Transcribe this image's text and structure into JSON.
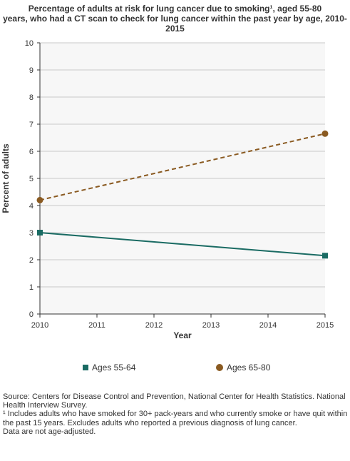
{
  "chart_data": {
    "type": "line",
    "title_lines": [
      "Percentage of adults at risk for lung cancer due to smoking¹, aged 55-80",
      "years, who had a CT scan to check for lung cancer within the past year by age, 2010-",
      "2015"
    ],
    "xlabel": "Year",
    "ylabel": "Percent of adults",
    "x": [
      "2010",
      "2011",
      "2012",
      "2013",
      "2014",
      "2015"
    ],
    "yticks": [
      "0",
      "1",
      "2",
      "3",
      "4",
      "5",
      "6",
      "7",
      "8",
      "9",
      "10"
    ],
    "ylim": [
      0,
      10
    ],
    "xlim": [
      2010,
      2015
    ],
    "grid": "horizontal",
    "legend_position": "bottom",
    "series": [
      {
        "name": "Ages 55-64",
        "color": "#1a6b63",
        "dash": "solid",
        "marker": "square",
        "points": [
          {
            "x": 2010,
            "y": 3.0
          },
          {
            "x": 2015,
            "y": 2.15
          }
        ]
      },
      {
        "name": "Ages 65-80",
        "color": "#8a5a21",
        "dash": "dashed",
        "marker": "circle",
        "points": [
          {
            "x": 2010,
            "y": 4.2
          },
          {
            "x": 2015,
            "y": 6.65
          }
        ]
      }
    ]
  },
  "footnotes": [
    "Source: Centers for Disease Control and Prevention, National Center for Health Statistics. National Health Interview Survey.",
    "¹ Includes adults who have smoked for 30+ pack-years and who currently smoke or have quit within the past 15 years. Excludes adults who reported a previous diagnosis of lung cancer.",
    "Data are not age-adjusted."
  ]
}
